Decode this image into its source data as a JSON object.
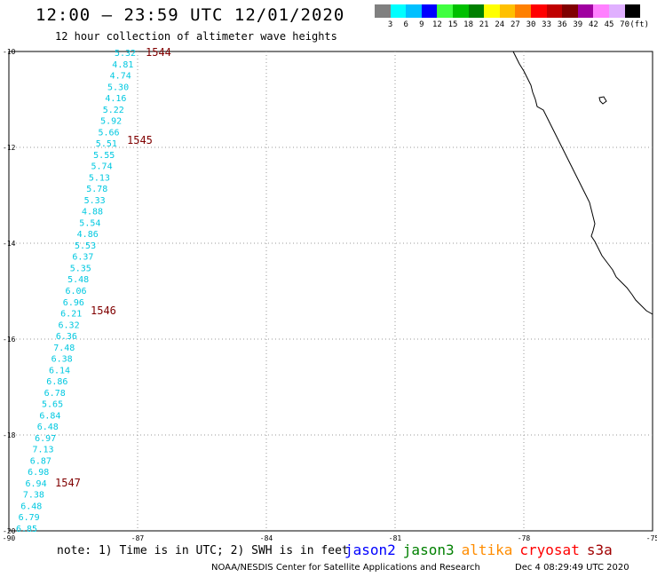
{
  "header": {
    "title": "12:00 – 23:59 UTC 12/01/2020",
    "subtitle": "12 hour collection of altimeter wave heights"
  },
  "colorbar": {
    "unit": "(ft)",
    "labels": [
      "3",
      "6",
      "9",
      "12",
      "15",
      "18",
      "21",
      "24",
      "27",
      "30",
      "33",
      "36",
      "39",
      "42",
      "45",
      "70"
    ],
    "colors": [
      "#808080",
      "#00ffff",
      "#00c0ff",
      "#0000ff",
      "#40ff40",
      "#00c000",
      "#008000",
      "#ffff00",
      "#ffc000",
      "#ff8000",
      "#ff0000",
      "#c00000",
      "#800000",
      "#a000a0",
      "#ff80ff",
      "#e0b0ff",
      "#000000"
    ]
  },
  "axes": {
    "lat_labels": [
      "-10",
      "-12",
      "-14",
      "-16",
      "-18",
      "-20"
    ],
    "lon_labels": [
      "-90",
      "-87",
      "-84",
      "-81",
      "-78",
      "-75"
    ]
  },
  "track": {
    "values": [
      "5.32",
      "4.81",
      "4.74",
      "5.30",
      "4.16",
      "5.22",
      "5.92",
      "5.66",
      "5.51",
      "5.55",
      "5.74",
      "5.13",
      "5.78",
      "5.33",
      "4.88",
      "5.54",
      "4.86",
      "5.53",
      "6.37",
      "5.35",
      "5.48",
      "6.06",
      "6.96",
      "6.21",
      "6.32",
      "6.36",
      "7.48",
      "6.38",
      "6.14",
      "6.86",
      "6.78",
      "5.65",
      "6.84",
      "6.48",
      "6.97",
      "7.13",
      "6.87",
      "6.98",
      "6.94",
      "7.38",
      "6.48",
      "6.79",
      "6.85"
    ],
    "value_color": "#00c8e0",
    "time_labels": [
      "1544",
      "1545",
      "1546",
      "1547"
    ],
    "time_color": "#800000"
  },
  "footer": {
    "note": "note: 1) Time is in UTC; 2) SWH is in feet",
    "missions": [
      {
        "name": "jason2",
        "color": "#0000ff"
      },
      {
        "name": "jason3",
        "color": "#008000"
      },
      {
        "name": "altika",
        "color": "#ff8c00"
      },
      {
        "name": "cryosat",
        "color": "#ff0000"
      },
      {
        "name": "s3a",
        "color": "#a00000"
      }
    ],
    "credit": "NOAA/NESDIS Center for Satellite Applications and Research",
    "timestamp": "Dec  4 08:29:49 UTC 2020"
  }
}
